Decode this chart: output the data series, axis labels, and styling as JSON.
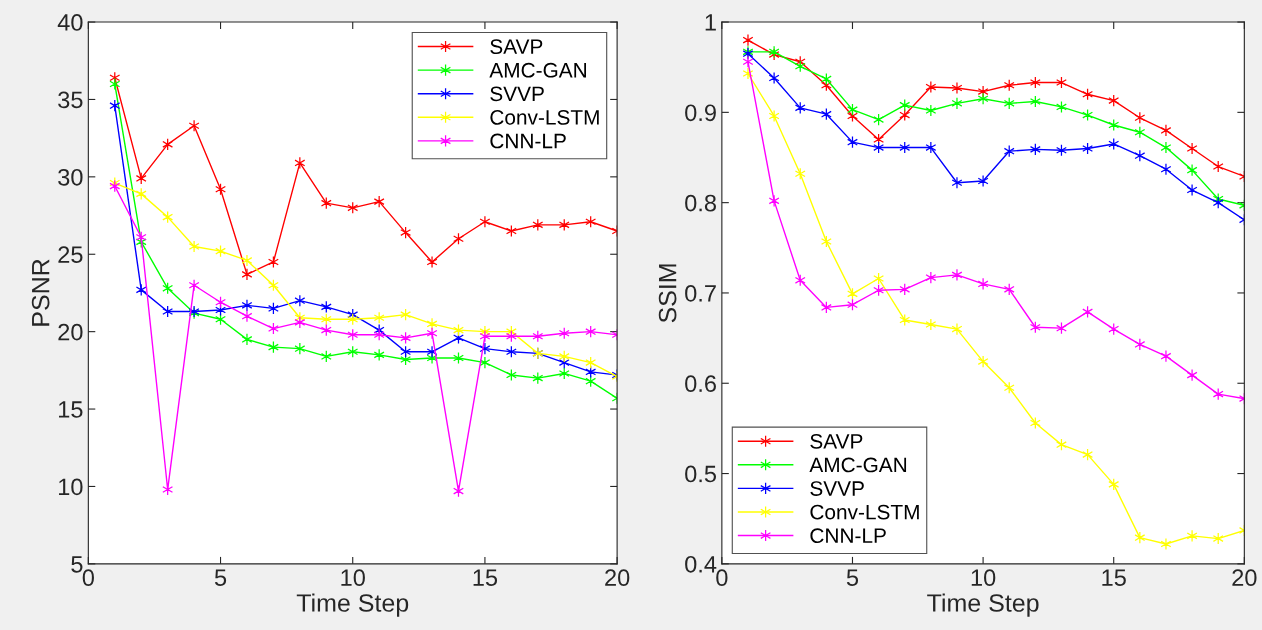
{
  "chart_data": [
    {
      "type": "line",
      "xlabel": "Time Step",
      "ylabel": "PSNR",
      "x": [
        1,
        2,
        3,
        4,
        5,
        6,
        7,
        8,
        9,
        10,
        11,
        12,
        13,
        14,
        15,
        16,
        17,
        18,
        19,
        20
      ],
      "xlim": [
        0,
        20
      ],
      "xticks": [
        0,
        5,
        10,
        15,
        20
      ],
      "ylim": [
        5,
        40
      ],
      "yticks": [
        5,
        10,
        15,
        20,
        25,
        30,
        35,
        40
      ],
      "grid": false,
      "legend": "top right",
      "marker": "cross",
      "line_style": "solid",
      "series": [
        {
          "name": "SAVP",
          "color": "#ff0000",
          "values": [
            36.4,
            29.9,
            32.1,
            33.3,
            29.2,
            23.7,
            24.5,
            30.9,
            28.3,
            28.0,
            28.4,
            26.4,
            24.5,
            26.0,
            27.1,
            26.5,
            26.9,
            26.9,
            27.1,
            26.5
          ]
        },
        {
          "name": "AMC-GAN",
          "color": "#00ff00",
          "values": [
            36.0,
            25.8,
            22.8,
            21.2,
            20.8,
            19.5,
            19.0,
            18.9,
            18.4,
            18.7,
            18.5,
            18.2,
            18.3,
            18.3,
            18.0,
            17.2,
            17.0,
            17.3,
            16.8,
            15.7
          ]
        },
        {
          "name": "SVVP",
          "color": "#0000ff",
          "values": [
            34.6,
            22.7,
            21.3,
            21.3,
            21.4,
            21.7,
            21.5,
            22.0,
            21.6,
            21.1,
            20.1,
            18.7,
            18.7,
            19.6,
            18.9,
            18.7,
            18.6,
            18.0,
            17.4,
            17.2
          ]
        },
        {
          "name": "Conv-LSTM",
          "color": "#ffff00",
          "values": [
            29.6,
            28.9,
            27.4,
            25.5,
            25.2,
            24.6,
            23.0,
            20.9,
            20.8,
            20.8,
            20.9,
            21.1,
            20.5,
            20.1,
            20.0,
            20.0,
            18.6,
            18.4,
            18.0,
            17.1
          ]
        },
        {
          "name": "CNN-LP",
          "color": "#ff00ff",
          "values": [
            29.4,
            26.1,
            9.8,
            23.0,
            21.9,
            21.0,
            20.2,
            20.6,
            20.1,
            19.8,
            19.8,
            19.6,
            19.9,
            9.7,
            19.7,
            19.7,
            19.7,
            19.9,
            20.0,
            19.8
          ]
        }
      ]
    },
    {
      "type": "line",
      "xlabel": "Time Step",
      "ylabel": "SSIM",
      "x": [
        1,
        2,
        3,
        4,
        5,
        6,
        7,
        8,
        9,
        10,
        11,
        12,
        13,
        14,
        15,
        16,
        17,
        18,
        19,
        20
      ],
      "xlim": [
        0,
        20
      ],
      "xticks": [
        0,
        5,
        10,
        15,
        20
      ],
      "ylim": [
        0.4,
        1
      ],
      "yticks": [
        0.4,
        0.5,
        0.6,
        0.7,
        0.8,
        0.9,
        1
      ],
      "grid": false,
      "legend": "bottom left",
      "marker": "cross",
      "line_style": "solid",
      "series": [
        {
          "name": "SAVP",
          "color": "#ff0000",
          "values": [
            0.98,
            0.964,
            0.956,
            0.93,
            0.896,
            0.87,
            0.897,
            0.928,
            0.927,
            0.923,
            0.93,
            0.933,
            0.933,
            0.92,
            0.913,
            0.894,
            0.88,
            0.86,
            0.84,
            0.829
          ]
        },
        {
          "name": "AMC-GAN",
          "color": "#00ff00",
          "values": [
            0.967,
            0.967,
            0.951,
            0.937,
            0.903,
            0.892,
            0.908,
            0.902,
            0.91,
            0.915,
            0.91,
            0.912,
            0.906,
            0.897,
            0.886,
            0.878,
            0.861,
            0.836,
            0.804,
            0.797
          ]
        },
        {
          "name": "SVVP",
          "color": "#0000ff",
          "values": [
            0.965,
            0.938,
            0.905,
            0.898,
            0.867,
            0.861,
            0.861,
            0.861,
            0.822,
            0.824,
            0.857,
            0.859,
            0.858,
            0.86,
            0.865,
            0.852,
            0.837,
            0.814,
            0.8,
            0.781
          ]
        },
        {
          "name": "Conv-LSTM",
          "color": "#ffff00",
          "values": [
            0.943,
            0.896,
            0.832,
            0.757,
            0.699,
            0.716,
            0.67,
            0.665,
            0.66,
            0.624,
            0.595,
            0.556,
            0.532,
            0.521,
            0.488,
            0.429,
            0.422,
            0.431,
            0.428,
            0.437
          ]
        },
        {
          "name": "CNN-LP",
          "color": "#ff00ff",
          "values": [
            0.956,
            0.802,
            0.714,
            0.684,
            0.687,
            0.703,
            0.704,
            0.717,
            0.72,
            0.71,
            0.704,
            0.662,
            0.661,
            0.679,
            0.66,
            0.643,
            0.63,
            0.609,
            0.588,
            0.583
          ]
        }
      ]
    }
  ]
}
